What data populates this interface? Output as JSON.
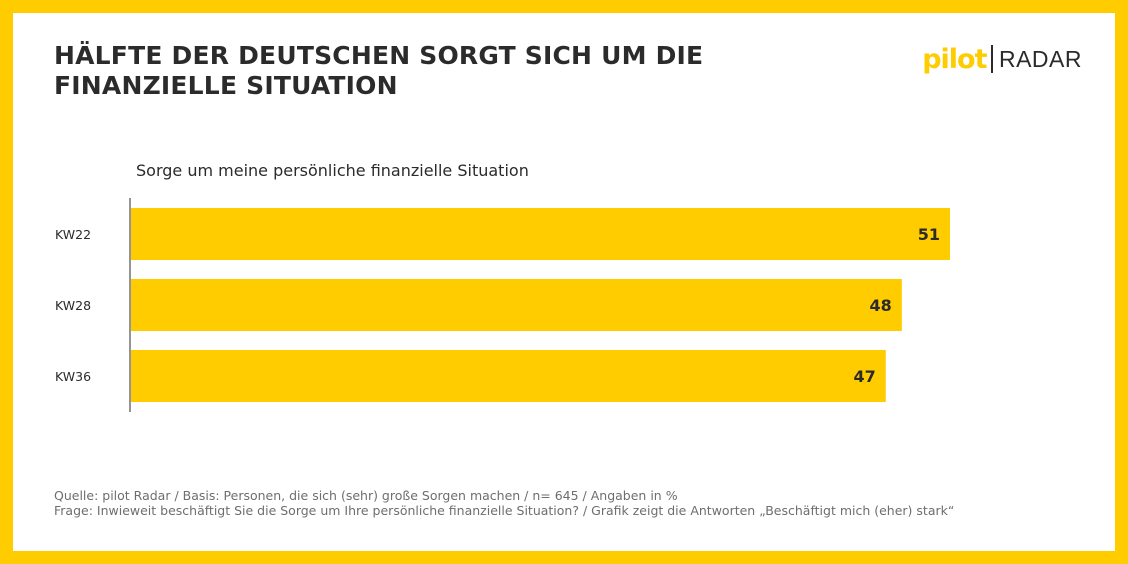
{
  "title": {
    "line1": "HÄLFTE DER DEUTSCHEN SORGT SICH UM DIE",
    "line2": "FINANZIELLE SITUATION"
  },
  "logo": {
    "pilot": "pilot",
    "radar": "RADAR"
  },
  "colors": {
    "brand_yellow": "#FFCC00",
    "text": "#2B2B2B",
    "footer_text": "#6E6E6E"
  },
  "chart_data": {
    "type": "bar",
    "orientation": "horizontal",
    "title": "Sorge um meine persönliche finanzielle Situation",
    "categories": [
      "KW22",
      "KW28",
      "KW36"
    ],
    "values": [
      51,
      48,
      47
    ],
    "xlim": [
      0,
      51
    ],
    "grid": false,
    "legend": "none"
  },
  "footer": {
    "source": "Quelle: pilot Radar / Basis: Personen, die sich (sehr) große Sorgen machen / n= 645 / Angaben in %",
    "question": "Frage: Inwieweit beschäftigt Sie die Sorge um Ihre persönliche finanzielle Situation?  / Grafik zeigt die Antworten „Beschäftigt mich (eher) stark“"
  }
}
